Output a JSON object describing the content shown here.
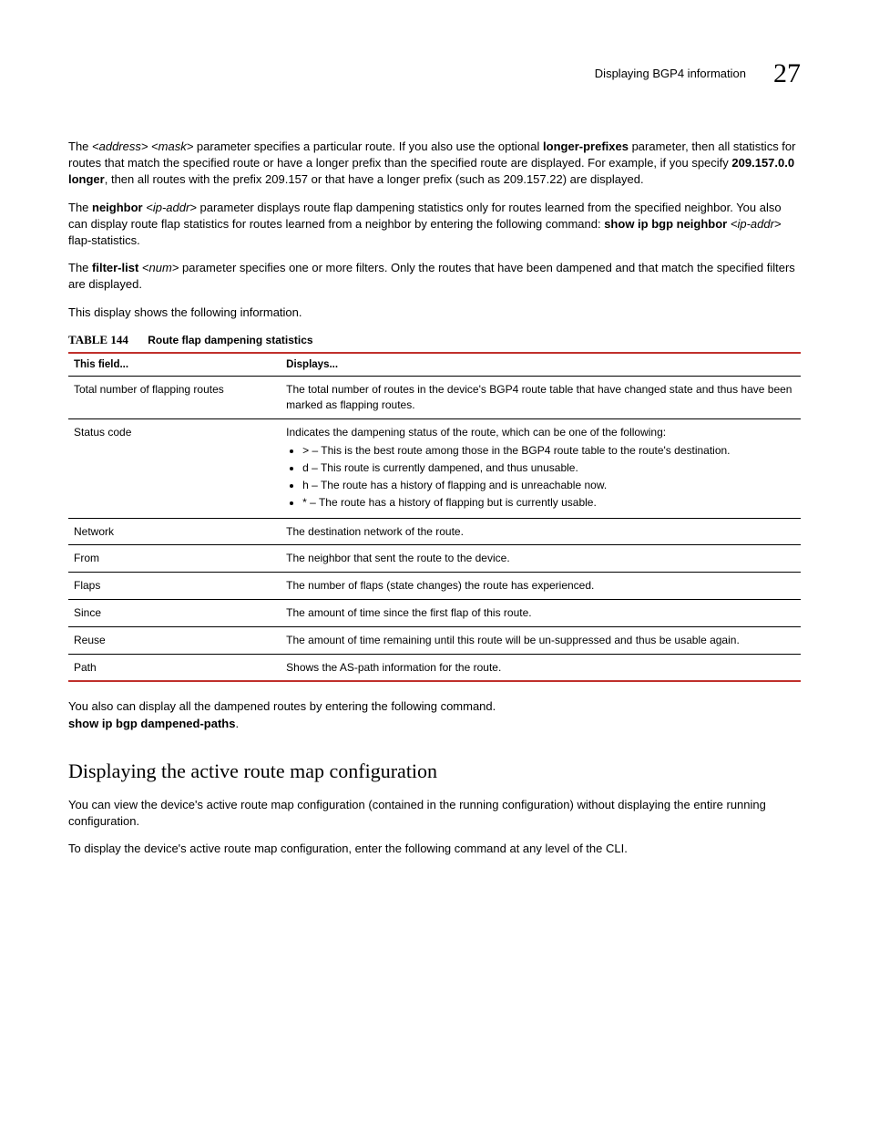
{
  "header": {
    "title": "Displaying BGP4 information",
    "page": "27"
  },
  "para1": {
    "t1": "The ",
    "addr": "<address> <mask>",
    "t2": " parameter specifies a particular route.  If you also use the optional ",
    "lp": "longer-prefixes",
    "t3": " parameter, then all statistics for routes that match the specified route or have a longer prefix than the specified route are displayed.  For example, if you specify ",
    "ex": "209.157.0.0 longer",
    "t4": ", then all routes with the prefix 209.157 or that have a longer prefix (such as 209.157.22) are displayed."
  },
  "para2": {
    "t1": "The ",
    "nb": "neighbor",
    "ip": " <ip-addr>",
    "t2": " parameter displays route flap dampening statistics only for routes learned from the specified neighbor.  You also can display route flap statistics for routes learned from a neighbor by entering the following command:  ",
    "cmd": "show ip bgp neighbor",
    "ip2": " <ip-addr> ",
    "t3": "flap-statistics."
  },
  "para3": {
    "t1": "The ",
    "fl": "filter-list",
    "num": " <num>",
    "t2": " parameter specifies one or more filters.  Only the routes that have been dampened and that match the specified filters are displayed."
  },
  "para4": "This display shows the following information.",
  "table": {
    "label": "TABLE 144",
    "desc": "Route flap dampening statistics",
    "h1": "This field...",
    "h2": "Displays...",
    "rows": {
      "r0": {
        "f": "Total number of flapping routes",
        "d": "The total number of routes in the device's BGP4 route table that have changed state and thus have been marked as flapping routes."
      },
      "r1": {
        "f": "Status code",
        "d_intro": "Indicates the dampening status of the route, which can be one of the following:",
        "b0": "> – This is the best route among those in the BGP4 route table to the route's destination.",
        "b1": "d – This route is currently dampened, and thus unusable.",
        "b2": "h – The route has a history of flapping and is unreachable now.",
        "b3": "* – The route has a history of flapping but is currently usable."
      },
      "r2": {
        "f": "Network",
        "d": "The destination network of the route."
      },
      "r3": {
        "f": "From",
        "d": "The neighbor that sent the route to the device."
      },
      "r4": {
        "f": "Flaps",
        "d": "The number of flaps (state changes) the route has experienced."
      },
      "r5": {
        "f": "Since",
        "d": "The amount of time since the first flap of this route."
      },
      "r6": {
        "f": "Reuse",
        "d": "The amount of time remaining until this route will be un-suppressed and thus be usable again."
      },
      "r7": {
        "f": "Path",
        "d": "Shows the AS-path information for the route."
      }
    }
  },
  "after": {
    "t1": "You also can display all the dampened routes by entering the following command. ",
    "cmd": "show ip bgp dampened-paths",
    "t2": "."
  },
  "section": {
    "title": "Displaying the active route map configuration",
    "p1": "You can view the device's active route map configuration (contained in the running configuration) without displaying the entire running configuration.",
    "p2": "To display the device's active route map configuration, enter the following command at any level of the CLI."
  }
}
